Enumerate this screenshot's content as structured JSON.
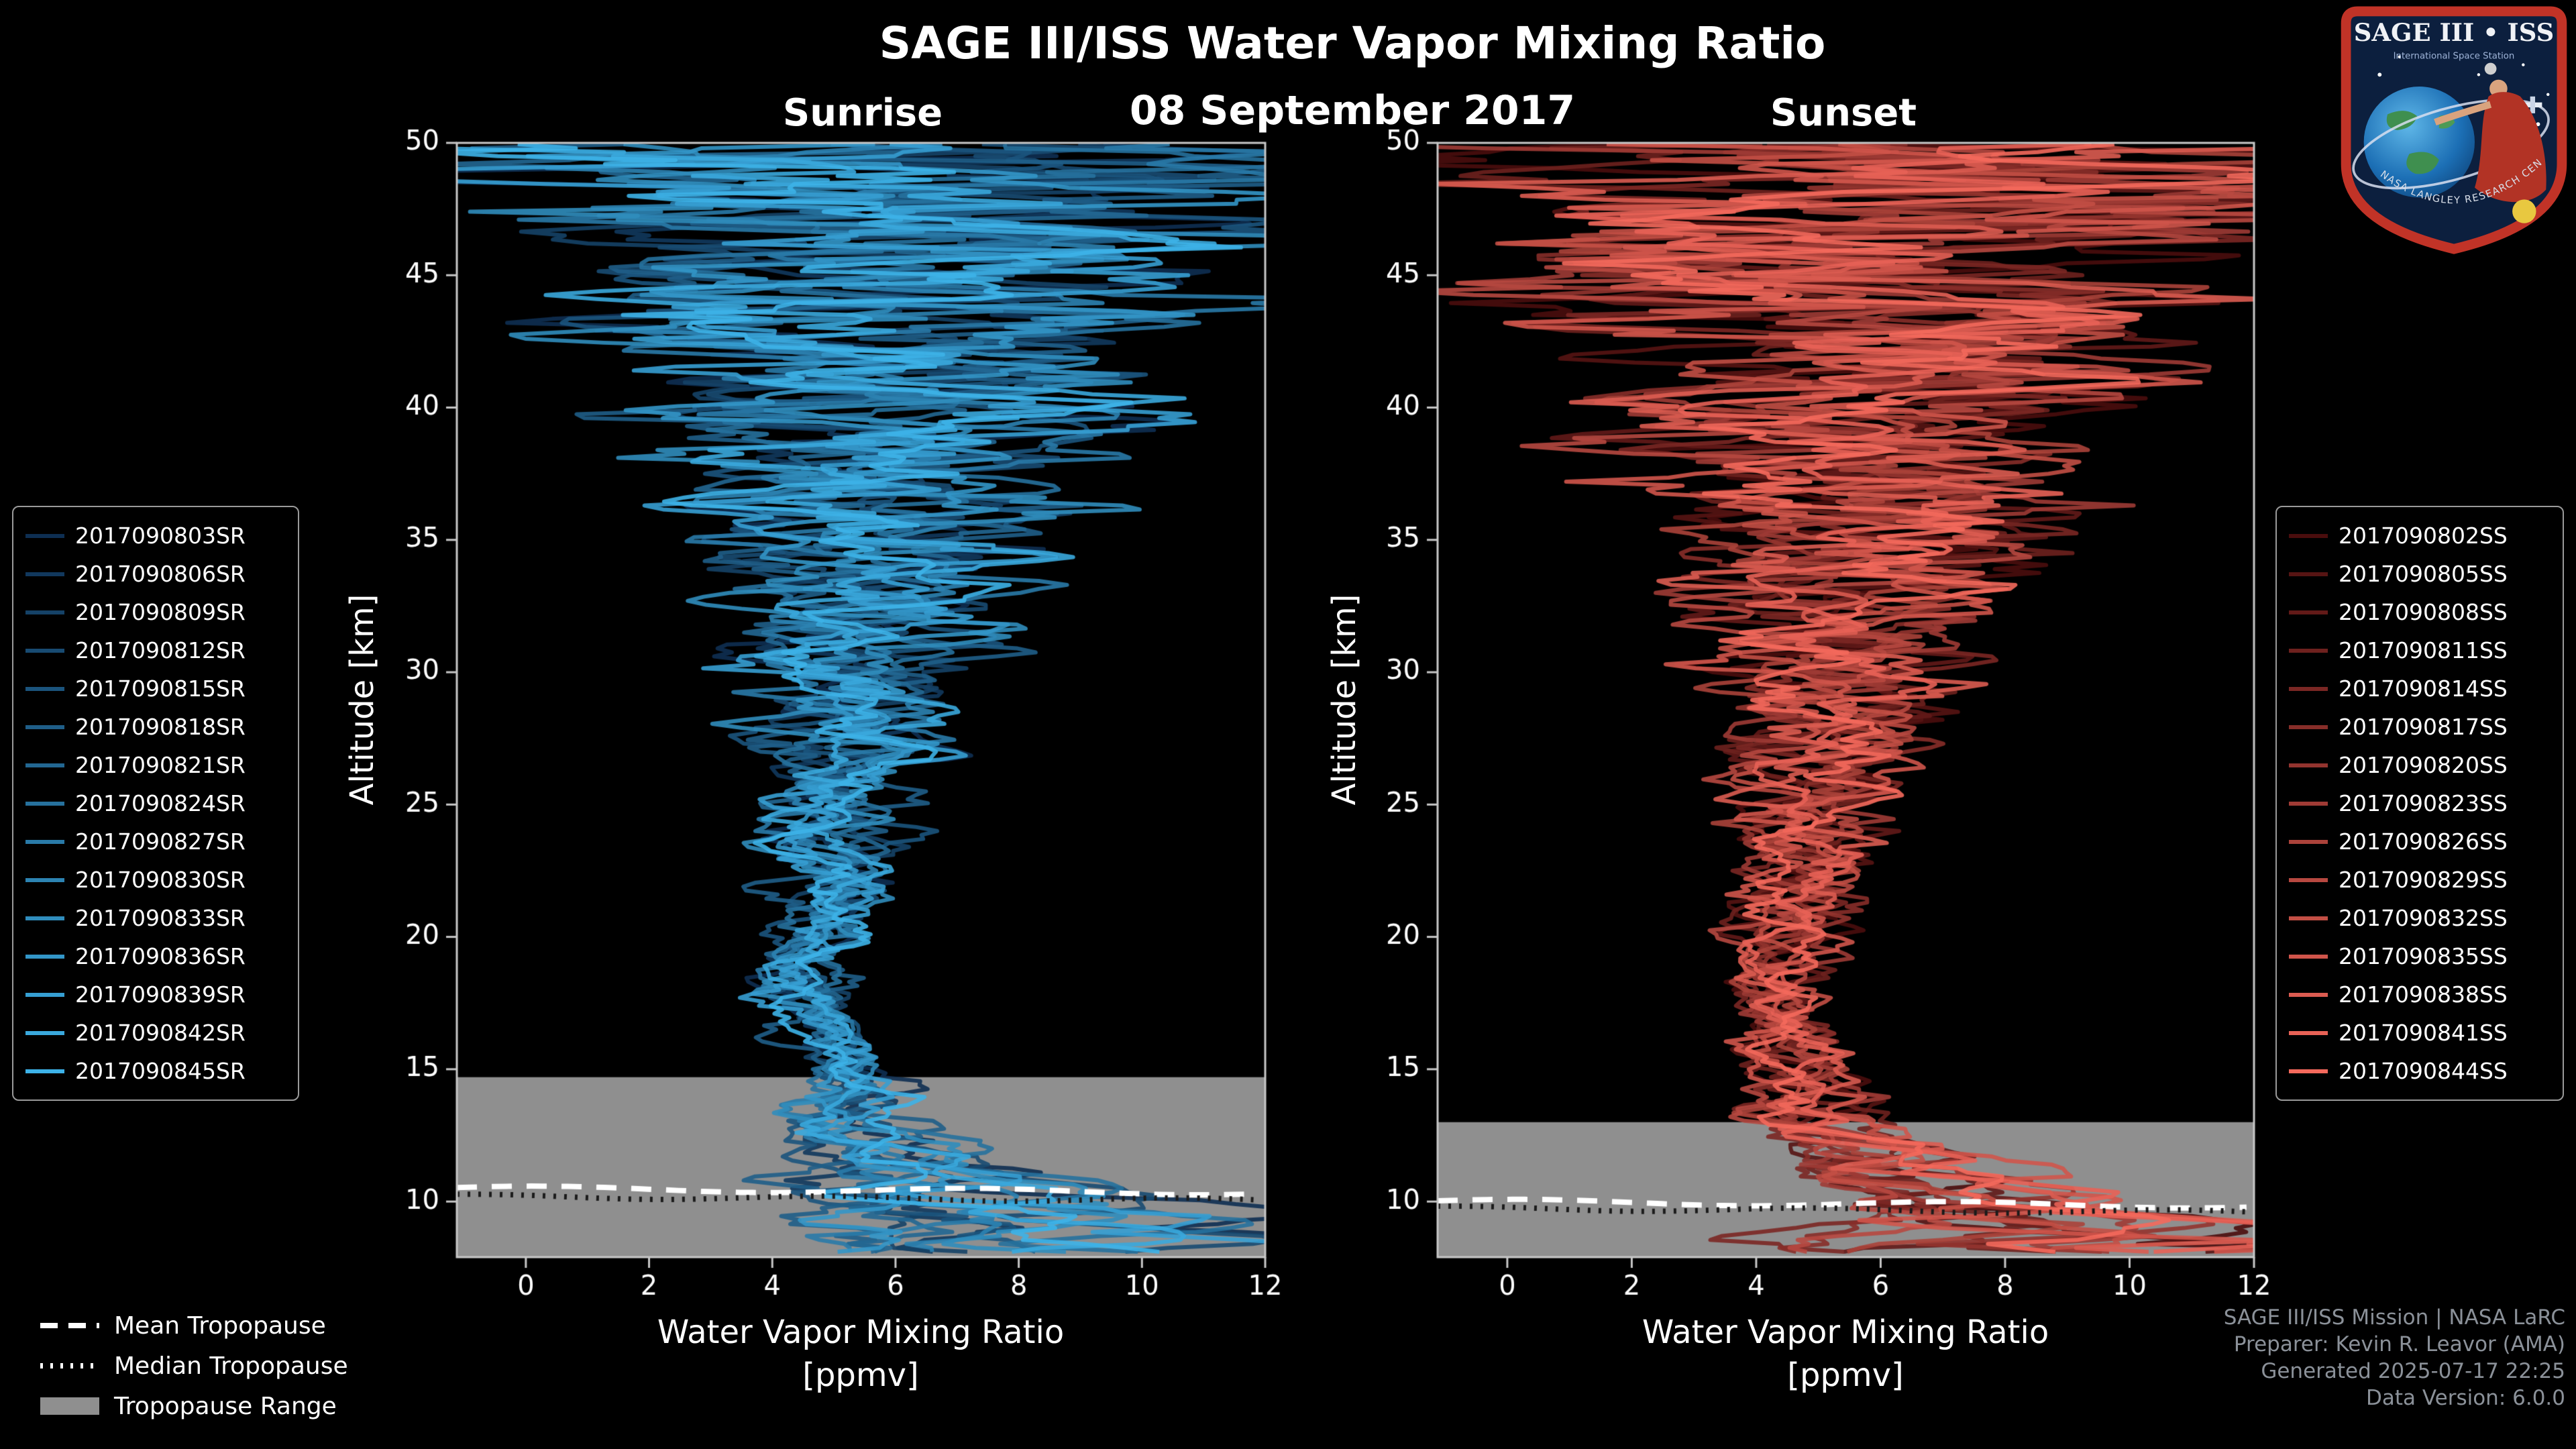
{
  "header": {
    "title": "SAGE III/ISS Water Vapor Mixing Ratio",
    "date": "08 September 2017",
    "left_subtitle": "Sunrise",
    "right_subtitle": "Sunset"
  },
  "tropopause_legend": {
    "mean_label": "Mean Tropopause",
    "median_label": "Median Tropopause",
    "range_label": "Tropopause Range",
    "range_color": "#8f8f8f"
  },
  "footer": {
    "line1": "SAGE III/ISS Mission | NASA LaRC",
    "line2": "Preparer: Kevin R. Leavor (AMA)",
    "line3": "Generated 2025-07-17 22:25",
    "line4": "Data Version: 6.0.0"
  },
  "logo": {
    "title": "SAGE III • ISS",
    "subtitle": "International Space Station",
    "ring_text": "NASA LANGLEY RESEARCH CENTER"
  },
  "chart_data": [
    {
      "type": "line",
      "panel": "sunrise",
      "title": "Sunrise",
      "xlabel": "Water Vapor Mixing Ratio",
      "xlabel_units": "[ppmv]",
      "ylabel": "Altitude [km]",
      "xlim": [
        -1.12,
        12.0
      ],
      "ylim": [
        7.9,
        50.0
      ],
      "xticks": [
        0,
        2,
        4,
        6,
        8,
        10,
        12
      ],
      "yticks": [
        10,
        15,
        20,
        25,
        30,
        35,
        40,
        45,
        50
      ],
      "grid": false,
      "legend_position": "outside-left",
      "color_start": "#0e2f52",
      "color_end": "#3db2e8",
      "series_names": [
        "2017090803SR",
        "2017090806SR",
        "2017090809SR",
        "2017090812SR",
        "2017090815SR",
        "2017090818SR",
        "2017090821SR",
        "2017090824SR",
        "2017090827SR",
        "2017090830SR",
        "2017090833SR",
        "2017090836SR",
        "2017090839SR",
        "2017090842SR",
        "2017090845SR"
      ],
      "mean_profile": {
        "altitude_km": [
          8,
          9,
          10,
          11,
          12,
          13,
          14,
          15,
          16,
          17,
          18,
          19,
          20,
          22,
          25,
          28,
          30,
          33,
          35,
          38,
          40,
          43,
          45,
          48,
          50
        ],
        "ppmv": [
          6.5,
          6.0,
          5.6,
          5.3,
          5.2,
          5.3,
          5.4,
          5.1,
          4.8,
          4.6,
          4.6,
          4.7,
          4.8,
          4.9,
          5.1,
          5.3,
          5.4,
          5.5,
          5.6,
          5.8,
          5.9,
          6.0,
          6.0,
          6.0,
          6.0
        ]
      },
      "spread_profile": {
        "altitude_km": [
          8,
          10,
          12,
          14,
          15,
          17,
          20,
          23,
          25,
          28,
          30,
          33,
          35,
          38,
          40,
          43,
          45,
          48,
          50
        ],
        "ppmv": [
          2.2,
          1.8,
          1.1,
          0.9,
          0.8,
          0.7,
          0.8,
          1.0,
          1.2,
          1.5,
          1.8,
          2.3,
          2.7,
          3.3,
          3.9,
          4.7,
          5.5,
          6.4,
          7.0
        ]
      },
      "tropopause": {
        "mean_km": 10.5,
        "median_km": 10.2,
        "range_top_km": 14.7,
        "range_bottom_km": 7.9,
        "band_color": "#8f8f8f"
      }
    },
    {
      "type": "line",
      "panel": "sunset",
      "title": "Sunset",
      "xlabel": "Water Vapor Mixing Ratio",
      "xlabel_units": "[ppmv]",
      "ylabel": "Altitude [km]",
      "xlim": [
        -1.12,
        12.0
      ],
      "ylim": [
        7.9,
        50.0
      ],
      "xticks": [
        0,
        2,
        4,
        6,
        8,
        10,
        12
      ],
      "yticks": [
        10,
        15,
        20,
        25,
        30,
        35,
        40,
        45,
        50
      ],
      "grid": false,
      "legend_position": "outside-right",
      "color_start": "#4a0d0d",
      "color_end": "#f4695c",
      "series_names": [
        "2017090802SS",
        "2017090805SS",
        "2017090808SS",
        "2017090811SS",
        "2017090814SS",
        "2017090817SS",
        "2017090820SS",
        "2017090823SS",
        "2017090826SS",
        "2017090829SS",
        "2017090832SS",
        "2017090835SS",
        "2017090838SS",
        "2017090841SS",
        "2017090844SS"
      ],
      "mean_profile": {
        "altitude_km": [
          8,
          9,
          10,
          11,
          12,
          13,
          14,
          15,
          16,
          17,
          18,
          19,
          20,
          22,
          25,
          28,
          30,
          33,
          35,
          38,
          40,
          43,
          45,
          48,
          50
        ],
        "ppmv": [
          6.2,
          5.7,
          5.2,
          4.9,
          4.7,
          4.8,
          4.9,
          4.7,
          4.5,
          4.3,
          4.3,
          4.4,
          4.5,
          4.7,
          4.9,
          5.2,
          5.3,
          5.5,
          5.6,
          5.8,
          5.9,
          6.0,
          6.0,
          6.0,
          6.0
        ]
      },
      "spread_profile": {
        "altitude_km": [
          8,
          10,
          12,
          14,
          15,
          17,
          20,
          23,
          25,
          28,
          30,
          33,
          35,
          38,
          40,
          43,
          45,
          48,
          50
        ],
        "ppmv": [
          2.2,
          1.8,
          1.1,
          0.9,
          0.8,
          0.7,
          0.8,
          1.0,
          1.2,
          1.5,
          1.8,
          2.3,
          2.7,
          3.3,
          3.9,
          4.7,
          5.5,
          6.4,
          7.0
        ]
      },
      "tropopause": {
        "mean_km": 10.0,
        "median_km": 9.75,
        "range_top_km": 13.0,
        "range_bottom_km": 7.9,
        "band_color": "#8f8f8f"
      }
    }
  ]
}
